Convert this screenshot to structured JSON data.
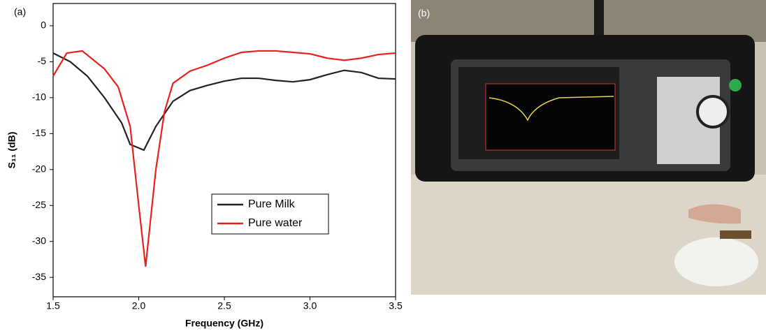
{
  "chart_data": {
    "type": "line",
    "panel_label": "(a)",
    "xlabel": "Frequency (GHz)",
    "ylabel": "S₁₁ (dB)",
    "xlim": [
      1.5,
      3.5
    ],
    "xticks": [
      1.5,
      {
        "value": 2,
        "label": "2.0"
      },
      2.5,
      {
        "value": 3,
        "label": "3.0"
      },
      3.5
    ],
    "ylim": [
      -37.7,
      3.1
    ],
    "yticks": [
      0,
      -5,
      -10,
      -15,
      -20,
      -25,
      -30,
      -35
    ],
    "legend": "lower-right",
    "series": [
      {
        "name": "Pure Milk",
        "color": "#222222",
        "x": [
          1.5,
          1.6,
          1.7,
          1.8,
          1.9,
          1.95,
          2.03,
          2.1,
          2.2,
          2.3,
          2.4,
          2.5,
          2.6,
          2.7,
          2.8,
          2.9,
          3.0,
          3.1,
          3.2,
          3.3,
          3.4,
          3.5
        ],
        "values": [
          -3.8,
          -5,
          -7,
          -10,
          -13.5,
          -16.5,
          -17.3,
          -14,
          -10.5,
          -9,
          -8.3,
          -7.7,
          -7.3,
          -7.3,
          -7.6,
          -7.8,
          -7.5,
          -6.8,
          -6.2,
          -6.5,
          -7.3,
          -7.4
        ]
      },
      {
        "name": "Pure water",
        "color": "#e8211c",
        "x": [
          1.5,
          1.58,
          1.67,
          1.8,
          1.88,
          1.95,
          2.0,
          2.04,
          2.1,
          2.15,
          2.2,
          2.3,
          2.4,
          2.5,
          2.6,
          2.7,
          2.8,
          2.9,
          3.0,
          3.1,
          3.2,
          3.3,
          3.4,
          3.5
        ],
        "values": [
          -7,
          -3.8,
          -3.5,
          -6,
          -8.5,
          -14,
          -25,
          -33.5,
          -20,
          -12,
          -8,
          -6.3,
          -5.5,
          -4.5,
          -3.7,
          -3.5,
          -3.5,
          -3.7,
          -3.9,
          -4.5,
          -4.8,
          -4.5,
          -4,
          -3.8
        ]
      }
    ]
  },
  "photo": {
    "panel_label": "(b)"
  }
}
